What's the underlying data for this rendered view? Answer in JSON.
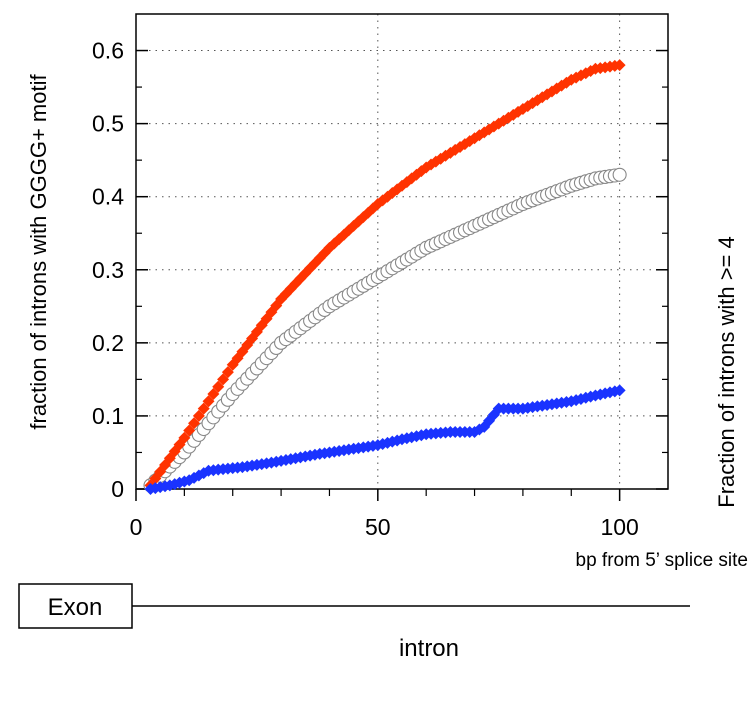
{
  "chart_data": {
    "type": "scatter",
    "title": "",
    "xlabel": "bp from 5’ splice site",
    "ylabel": "fraction of introns with GGGG+ motif",
    "right_label": "Fraction of introns with >= 4",
    "xlim": [
      0,
      110
    ],
    "ylim": [
      0,
      0.65
    ],
    "x_ticks": [
      "0",
      "50",
      "100"
    ],
    "y_ticks": [
      "0",
      "0.1",
      "0.2",
      "0.3",
      "0.4",
      "0.5",
      "0.6"
    ],
    "grid": true,
    "series": [
      {
        "marker": "diamond",
        "color": "#ff3300",
        "x": [
          3,
          10,
          20,
          30,
          40,
          50,
          60,
          70,
          80,
          90,
          95,
          100
        ],
        "y": [
          0.005,
          0.07,
          0.17,
          0.26,
          0.33,
          0.39,
          0.44,
          0.48,
          0.52,
          0.56,
          0.575,
          0.58
        ]
      },
      {
        "marker": "open-circle",
        "color": "#888888",
        "x": [
          3,
          10,
          20,
          30,
          40,
          50,
          60,
          70,
          80,
          90,
          95,
          100
        ],
        "y": [
          0.005,
          0.05,
          0.13,
          0.2,
          0.25,
          0.29,
          0.33,
          0.36,
          0.39,
          0.415,
          0.425,
          0.43
        ]
      },
      {
        "marker": "diamond",
        "color": "#1a33ff",
        "x": [
          3,
          7,
          11,
          15,
          22,
          27,
          33,
          38,
          45,
          50,
          55,
          60,
          65,
          70,
          72,
          75,
          80,
          85,
          90,
          95,
          100
        ],
        "y": [
          0,
          0.005,
          0.012,
          0.025,
          0.03,
          0.035,
          0.042,
          0.048,
          0.055,
          0.06,
          0.068,
          0.075,
          0.078,
          0.078,
          0.085,
          0.11,
          0.11,
          0.115,
          0.12,
          0.128,
          0.135
        ]
      }
    ]
  },
  "gene_diagram": {
    "exon_label": "Exon",
    "intron_label": "intron"
  }
}
